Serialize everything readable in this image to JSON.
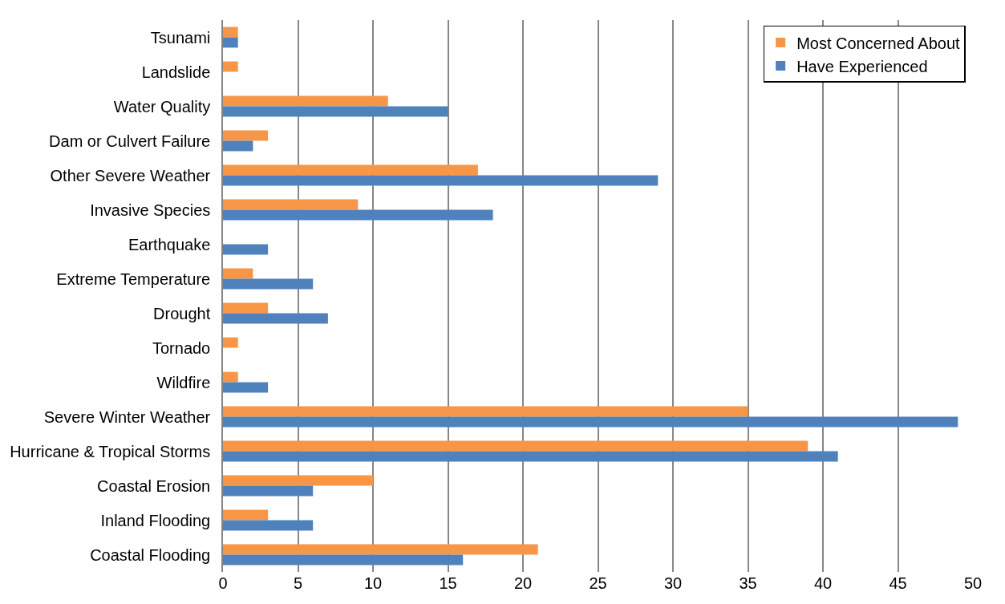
{
  "chart_data": {
    "type": "bar",
    "orientation": "horizontal",
    "categories": [
      "Tsunami",
      "Landslide",
      "Water Quality",
      "Dam or Culvert Failure",
      "Other Severe Weather",
      "Invasive Species",
      "Earthquake",
      "Extreme Temperature",
      "Drought",
      "Tornado",
      "Wildfire",
      "Severe Winter Weather",
      "Hurricane & Tropical Storms",
      "Coastal Erosion",
      "Inland Flooding",
      "Coastal Flooding"
    ],
    "series": [
      {
        "name": "Most Concerned About",
        "color": "#f79646",
        "values": [
          1,
          1,
          11,
          3,
          17,
          9,
          0,
          2,
          3,
          1,
          1,
          35,
          39,
          10,
          3,
          21
        ]
      },
      {
        "name": "Have Experienced",
        "color": "#4f81bd",
        "values": [
          1,
          0,
          15,
          2,
          29,
          18,
          3,
          6,
          7,
          0,
          3,
          49,
          41,
          6,
          6,
          16
        ]
      }
    ],
    "xlim": [
      0,
      50
    ],
    "xticks": [
      0,
      5,
      10,
      15,
      20,
      25,
      30,
      35,
      40,
      45,
      50
    ],
    "grid": "x",
    "legend": "top right"
  }
}
